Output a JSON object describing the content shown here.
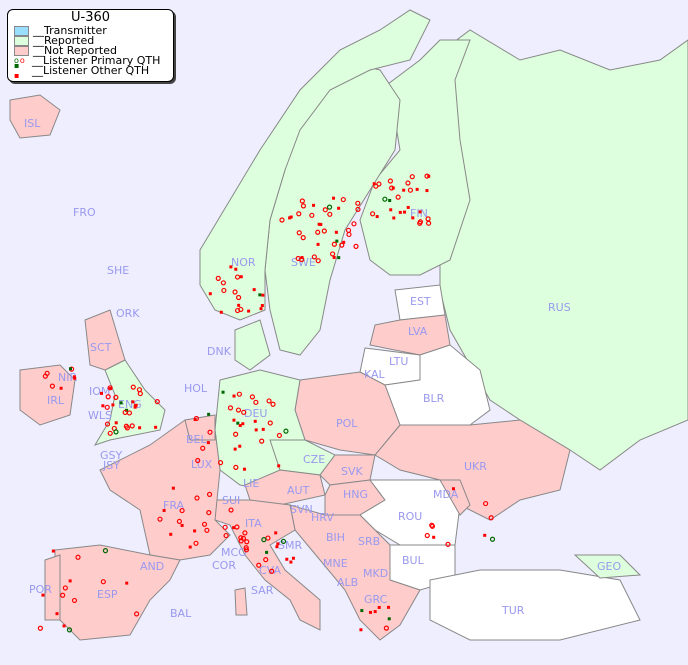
{
  "map": {
    "title": "U-360",
    "colors": {
      "sea": "#eeeeff",
      "transmitter": "#99ddff",
      "reported": "#ddffdd",
      "not_reported": "#ffcccc",
      "neutral": "#ffffff",
      "border": "#888888",
      "primary_reported": "#006600",
      "marker": "#ff0000"
    }
  },
  "legend": {
    "items": [
      {
        "label": "__Transmitter",
        "icon": "swatch-blue"
      },
      {
        "label": "__Reported",
        "icon": "swatch-green"
      },
      {
        "label": "__Not Reported",
        "icon": "swatch-pink"
      },
      {
        "label": "__Listener Primary QTH",
        "icon": "circle-markers"
      },
      {
        "label": "__Listener Other QTH",
        "icon": "square-markers"
      }
    ]
  },
  "countries": [
    "ISL",
    "FRO",
    "SHE",
    "ORK",
    "NOR",
    "SWE",
    "FIN",
    "EST",
    "RUS",
    "LVA",
    "LTU",
    "KAL",
    "BLR",
    "DNK",
    "HOL",
    "DEU",
    "POL",
    "SCT",
    "NIR",
    "IRL",
    "IOM",
    "WLS",
    "ENG",
    "GSY",
    "JSY",
    "BEL",
    "LUX",
    "FRA",
    "SUI",
    "LIE",
    "AUT",
    "CZE",
    "SVK",
    "HNG",
    "UKR",
    "MDA",
    "ROU",
    "SVN",
    "HRV",
    "BIH",
    "SRB",
    "MNE",
    "ALB",
    "MKD",
    "BUL",
    "GRC",
    "TUR",
    "GEO",
    "ITA",
    "MCO",
    "COR",
    "SMR",
    "CVA",
    "SAR",
    "AND",
    "POR",
    "ESP",
    "BAL"
  ]
}
